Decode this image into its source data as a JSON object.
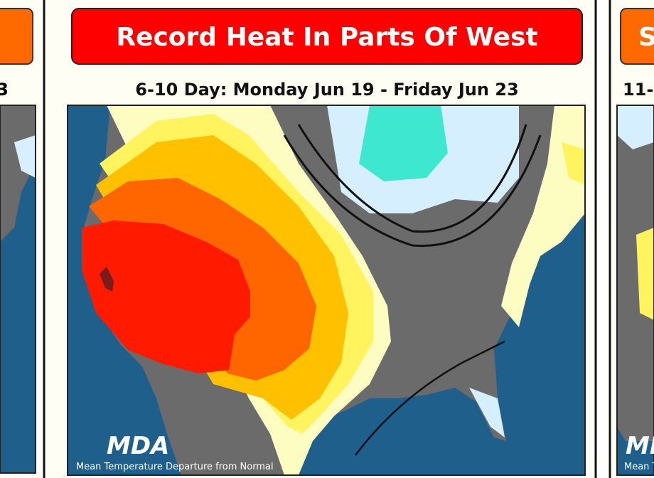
{
  "left_card": {
    "subtitle": "3"
  },
  "main_card": {
    "title": "Record Heat In Parts Of West",
    "subtitle": "6-10 Day: Monday Jun 19 - Friday Jun 23",
    "logo": "MDA",
    "caption": "Mean Temperature Departure from Normal"
  },
  "right_card": {
    "title": "S",
    "subtitle": "11-",
    "logo": "MDA",
    "caption": "Mean Tempera"
  }
}
